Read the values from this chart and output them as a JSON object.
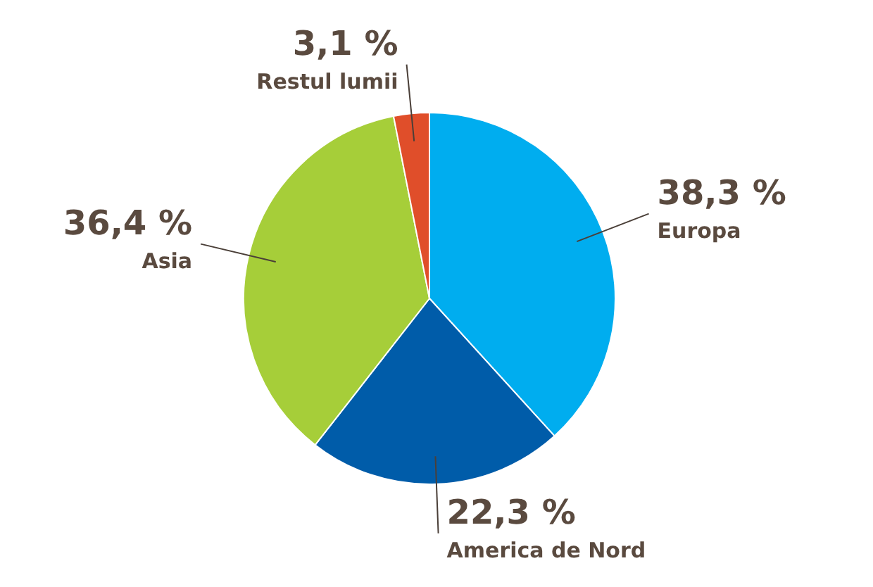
{
  "chart_data": {
    "type": "pie",
    "categories": [
      "Europa",
      "America de Nord",
      "Asia",
      "Restul lumii"
    ],
    "values": [
      38.3,
      22.3,
      36.4,
      3.1
    ],
    "colors": [
      "#00adef",
      "#005ca9",
      "#a6ce39",
      "#e04e2a"
    ],
    "value_labels": [
      "38,3 %",
      "22,3 %",
      "36,4 %",
      "3,1 %"
    ]
  }
}
